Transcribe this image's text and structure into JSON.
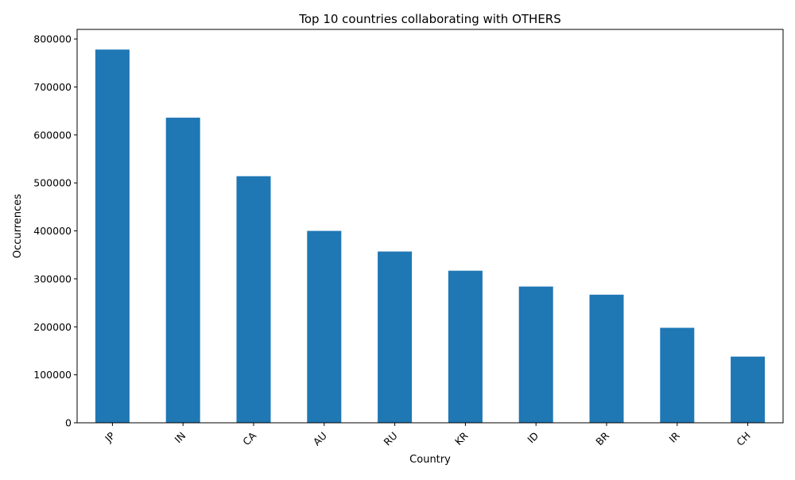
{
  "chart_data": {
    "type": "bar",
    "title": "Top 10 countries collaborating with OTHERS",
    "xlabel": "Country",
    "ylabel": "Occurrences",
    "categories": [
      "JP",
      "IN",
      "CA",
      "AU",
      "RU",
      "KR",
      "ID",
      "BR",
      "IR",
      "CH"
    ],
    "values": [
      778000,
      636000,
      514000,
      400000,
      357000,
      317000,
      284000,
      267000,
      198000,
      138000
    ],
    "ylim": [
      0,
      820000
    ],
    "yticks": [
      0,
      100000,
      200000,
      300000,
      400000,
      500000,
      600000,
      700000,
      800000
    ],
    "ytick_labels": [
      "0",
      "100000",
      "200000",
      "300000",
      "400000",
      "500000",
      "600000",
      "700000",
      "800000"
    ],
    "bar_color": "#1f77b4",
    "grid": false,
    "x_tick_rotation": 45
  }
}
